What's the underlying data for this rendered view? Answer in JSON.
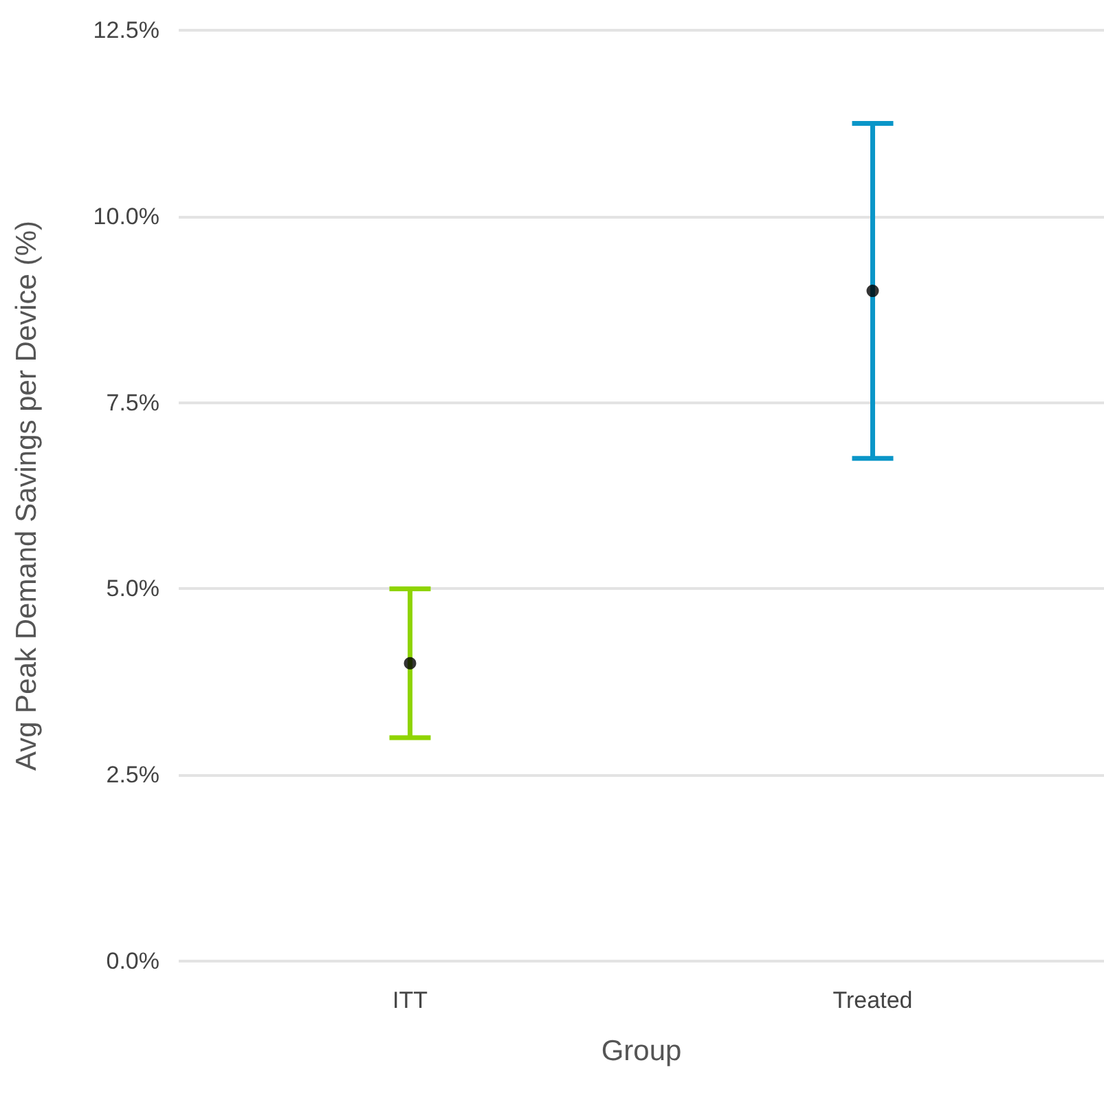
{
  "chart_data": {
    "type": "scatter",
    "xlabel": "Group",
    "ylabel": "Avg Peak Demand Savings per Device (%)",
    "categories": [
      "ITT",
      "Treated"
    ],
    "values": [
      4.0,
      9.0
    ],
    "errors": [
      1.0,
      2.25
    ],
    "color": "#000000",
    "ylim": [
      0,
      12.5
    ],
    "yticks": [
      {
        "value": 0,
        "label": "0.0%"
      },
      {
        "value": 2.5,
        "label": "2.5%"
      },
      {
        "value": 5,
        "label": "5.0%"
      },
      {
        "value": 7.5,
        "label": "7.5%"
      },
      {
        "value": 10,
        "label": "10.0%"
      },
      {
        "value": 12.5,
        "label": "12.5%"
      }
    ],
    "grid": "y",
    "marker": "circle"
  }
}
